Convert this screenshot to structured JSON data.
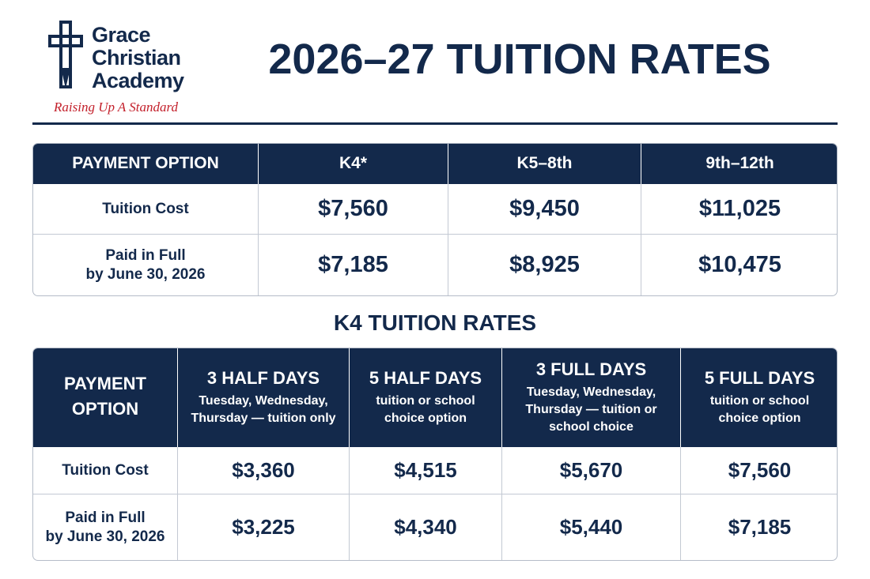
{
  "logo": {
    "name": [
      "Grace",
      "Christian",
      "Academy"
    ],
    "tagline": "Raising Up A Standard"
  },
  "title": "2026–27 TUITION RATES",
  "table": {
    "header": [
      [
        "PAYMENT OPTION"
      ],
      [
        "K4*"
      ],
      [
        "K5–8th"
      ],
      [
        "9th–12th"
      ]
    ],
    "rows": [
      [
        [
          "Tuition Cost"
        ],
        [
          "$7,560"
        ],
        [
          "$9,450"
        ],
        [
          "$11,025"
        ]
      ],
      [
        [
          "Paid in Full",
          "by June 30, 2026"
        ],
        [
          "$7,185"
        ],
        [
          "$8,925"
        ],
        [
          "$10,475"
        ]
      ]
    ]
  },
  "k4_title": "K4 TUITION RATES",
  "k4_table": {
    "header": [
      {
        "title": [
          "PAYMENT",
          "OPTION"
        ]
      },
      {
        "title": [
          "3 HALF DAYS"
        ],
        "note": [
          "Tuesday, Wednesday,",
          "Thursday — tuition only"
        ]
      },
      {
        "title": [
          "5 HALF DAYS"
        ],
        "note": [
          "tuition or school",
          "choice option"
        ]
      },
      {
        "title": [
          "3 FULL DAYS"
        ],
        "note": [
          "Tuesday, Wednesday,",
          "Thursday — tuition or",
          "school choice"
        ]
      },
      {
        "title": [
          "5 FULL DAYS"
        ],
        "note": [
          "tuition or school",
          "choice option"
        ]
      }
    ],
    "rows": [
      [
        [
          "Tuition Cost"
        ],
        [
          "$3,360"
        ],
        [
          "$4,515"
        ],
        [
          "$5,670"
        ],
        [
          "$7,560"
        ]
      ],
      [
        [
          "Paid in Full",
          "by June 30, 2026"
        ],
        [
          "$3,225"
        ],
        [
          "$4,340"
        ],
        [
          "$5,440"
        ],
        [
          "$7,185"
        ]
      ]
    ]
  }
}
